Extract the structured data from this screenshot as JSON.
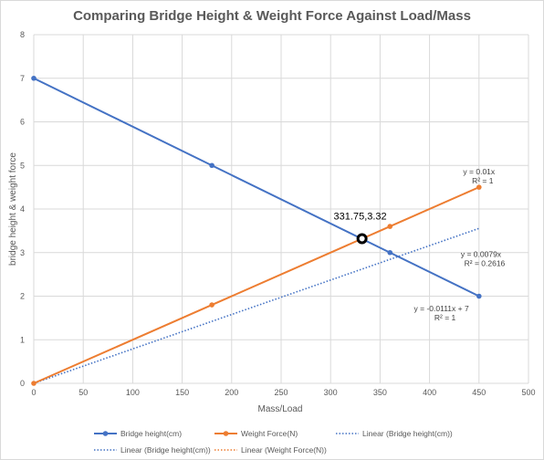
{
  "chart_data": {
    "type": "line",
    "title": "Comparing Bridge Height & Weight Force Against Load/Mass",
    "xlabel": "Mass/Load",
    "ylabel": "bridge height & weight force",
    "xlim": [
      0,
      500
    ],
    "ylim": [
      0,
      8
    ],
    "x_ticks": [
      0,
      50,
      100,
      150,
      200,
      250,
      300,
      350,
      400,
      450,
      500
    ],
    "y_ticks": [
      0,
      1,
      2,
      3,
      4,
      5,
      6,
      7,
      8
    ],
    "grid": true,
    "legend_position": "bottom",
    "series": [
      {
        "name": "Bridge height(cm)",
        "color": "#4472c4",
        "style": "solid-markers",
        "x": [
          0,
          180,
          360,
          450
        ],
        "y": [
          7,
          5,
          3,
          2
        ]
      },
      {
        "name": "Weight Force(N)",
        "color": "#ed7d31",
        "style": "solid-markers",
        "x": [
          0,
          180,
          360,
          450
        ],
        "y": [
          0,
          1.8,
          3.6,
          4.5
        ]
      }
    ],
    "trendlines": [
      {
        "name": "Linear (Bridge height(cm))",
        "color": "#4472c4",
        "x": [
          0,
          450
        ],
        "y": [
          0,
          3.555
        ]
      }
    ],
    "extra_legend": [
      {
        "name": "Linear (Bridge height(cm))",
        "color": "#4472c4"
      },
      {
        "name": "Linear (Bridge height(cm))",
        "color": "#4472c4"
      },
      {
        "name": "Linear (Weight Force(N))",
        "color": "#ed7d31"
      }
    ],
    "equations": [
      {
        "lines": [
          "y = 0.01x",
          "R² = 1"
        ],
        "x": 450,
        "y": 4.8
      },
      {
        "lines": [
          "y = 0.0079x",
          "R² = 0.2616"
        ],
        "x": 452,
        "y": 2.9
      },
      {
        "lines": [
          "y = -0.0111x + 7",
          "R² = 1"
        ],
        "x": 412,
        "y": 1.65
      }
    ],
    "intersection": {
      "label": "331.75,3.32",
      "x": 331.75,
      "y": 3.32
    }
  }
}
